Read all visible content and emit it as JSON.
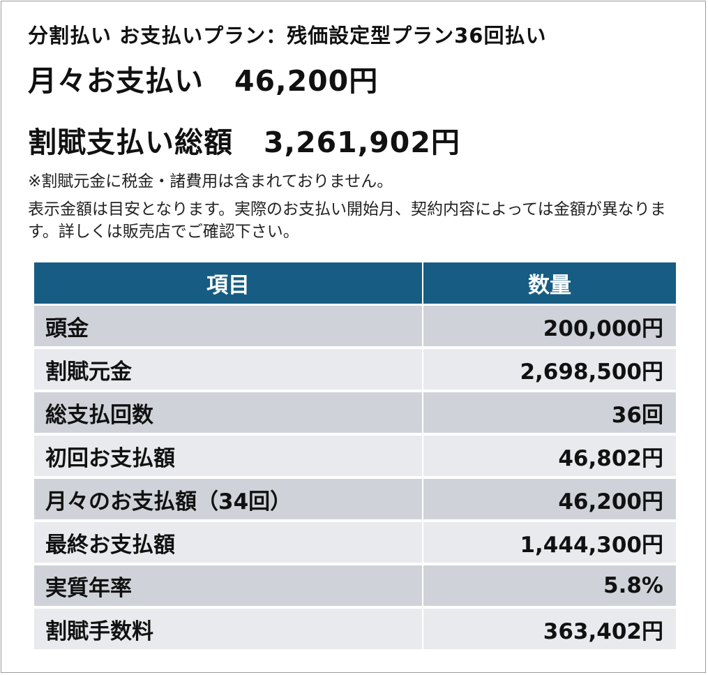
{
  "plan_title": "分割払い お支払いプラン：残価設定型プラン36回払い",
  "monthly": {
    "label": "月々お支払い",
    "amount": "46,200円"
  },
  "total": {
    "label": "割賦支払い総額",
    "amount": "3,261,902円"
  },
  "notes": {
    "tax_note": "※割賦元金に税金・諸費用は含まれておりません。",
    "disclaimer": "表示金額は目安となります。実際のお支払い開始月、契約内容によっては金額が異なります。詳しくは販売店でご確認下さい。"
  },
  "table": {
    "headers": [
      "項目",
      "数量"
    ],
    "rows": [
      {
        "label": "頭金",
        "value": "200,000円"
      },
      {
        "label": "割賦元金",
        "value": "2,698,500円"
      },
      {
        "label": "総支払回数",
        "value": "36回"
      },
      {
        "label": "初回お支払額",
        "value": "46,802円"
      },
      {
        "label": "月々のお支払額（34回）",
        "value": "46,200円"
      },
      {
        "label": "最終お支払額",
        "value": "1,444,300円"
      },
      {
        "label": "実質年率",
        "value": "5.8%"
      },
      {
        "label": "割賦手数料",
        "value": "363,402円"
      }
    ]
  },
  "colors": {
    "header_bg": "#175c82",
    "row_dark": "#cfd3d9",
    "row_light": "#e8eaed"
  }
}
